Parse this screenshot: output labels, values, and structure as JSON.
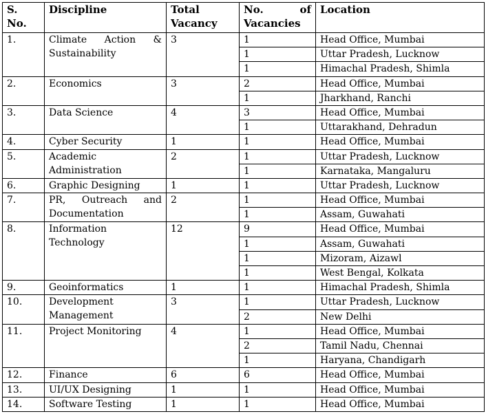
{
  "header": [
    "S. No.",
    "Discipline",
    "Total Vacancy",
    "No. of Vacancies",
    "Location"
  ],
  "rows": [
    {
      "sno": "1.",
      "discipline": "Climate Action & Sustainability",
      "total": 3,
      "locations": [
        {
          "count": 1,
          "location": "Head Office, Mumbai"
        },
        {
          "count": 1,
          "location": "Uttar Pradesh, Lucknow"
        },
        {
          "count": 1,
          "location": "Himachal Pradesh, Shimla"
        }
      ]
    },
    {
      "sno": "2.",
      "discipline": "Economics",
      "total": 3,
      "locations": [
        {
          "count": 2,
          "location": "Head Office, Mumbai"
        },
        {
          "count": 1,
          "location": "Jharkhand, Ranchi"
        }
      ]
    },
    {
      "sno": "3.",
      "discipline": "Data Science",
      "total": 4,
      "locations": [
        {
          "count": 3,
          "location": "Head Office, Mumbai"
        },
        {
          "count": 1,
          "location": "Uttarakhand, Dehradun"
        }
      ]
    },
    {
      "sno": "4.",
      "discipline": "Cyber Security",
      "total": 1,
      "locations": [
        {
          "count": 1,
          "location": "Head Office, Mumbai"
        }
      ]
    },
    {
      "sno": "5.",
      "discipline": "Academic Administration",
      "total": 2,
      "locations": [
        {
          "count": 1,
          "location": "Uttar Pradesh, Lucknow"
        },
        {
          "count": 1,
          "location": "Karnataka, Mangaluru"
        }
      ]
    },
    {
      "sno": "6.",
      "discipline": "Graphic Designing",
      "total": 1,
      "locations": [
        {
          "count": 1,
          "location": "Uttar Pradesh, Lucknow"
        }
      ]
    },
    {
      "sno": "7.",
      "discipline": "PR, Outreach and Documentation",
      "total": 2,
      "locations": [
        {
          "count": 1,
          "location": "Head Office, Mumbai"
        },
        {
          "count": 1,
          "location": "Assam, Guwahati"
        }
      ]
    },
    {
      "sno": "8.",
      "discipline": "Information Technology",
      "total": 12,
      "locations": [
        {
          "count": 9,
          "location": "Head Office, Mumbai"
        },
        {
          "count": 1,
          "location": "Assam, Guwahati"
        },
        {
          "count": 1,
          "location": "Mizoram, Aizawl"
        },
        {
          "count": 1,
          "location": "West Bengal, Kolkata"
        }
      ]
    },
    {
      "sno": "9.",
      "discipline": "Geoinformatics",
      "total": 1,
      "locations": [
        {
          "count": 1,
          "location": "Himachal Pradesh, Shimla"
        }
      ]
    },
    {
      "sno": "10.",
      "discipline": "Development Management",
      "total": 3,
      "locations": [
        {
          "count": 1,
          "location": "Uttar Pradesh, Lucknow"
        },
        {
          "count": 2,
          "location": "New Delhi"
        }
      ]
    },
    {
      "sno": "11.",
      "discipline": "Project Monitoring",
      "total": 4,
      "locations": [
        {
          "count": 1,
          "location": "Head Office, Mumbai"
        },
        {
          "count": 2,
          "location": "Tamil Nadu, Chennai"
        },
        {
          "count": 1,
          "location": "Haryana, Chandigarh"
        }
      ]
    },
    {
      "sno": "12.",
      "discipline": "Finance",
      "total": 6,
      "locations": [
        {
          "count": 6,
          "location": "Head Office, Mumbai"
        }
      ]
    },
    {
      "sno": "13.",
      "discipline": "UI/UX Designing",
      "total": 1,
      "locations": [
        {
          "count": 1,
          "location": "Head Office, Mumbai"
        }
      ]
    },
    {
      "sno": "14.",
      "discipline": "Software Testing",
      "total": 1,
      "locations": [
        {
          "count": 1,
          "location": "Head Office, Mumbai"
        }
      ]
    }
  ]
}
